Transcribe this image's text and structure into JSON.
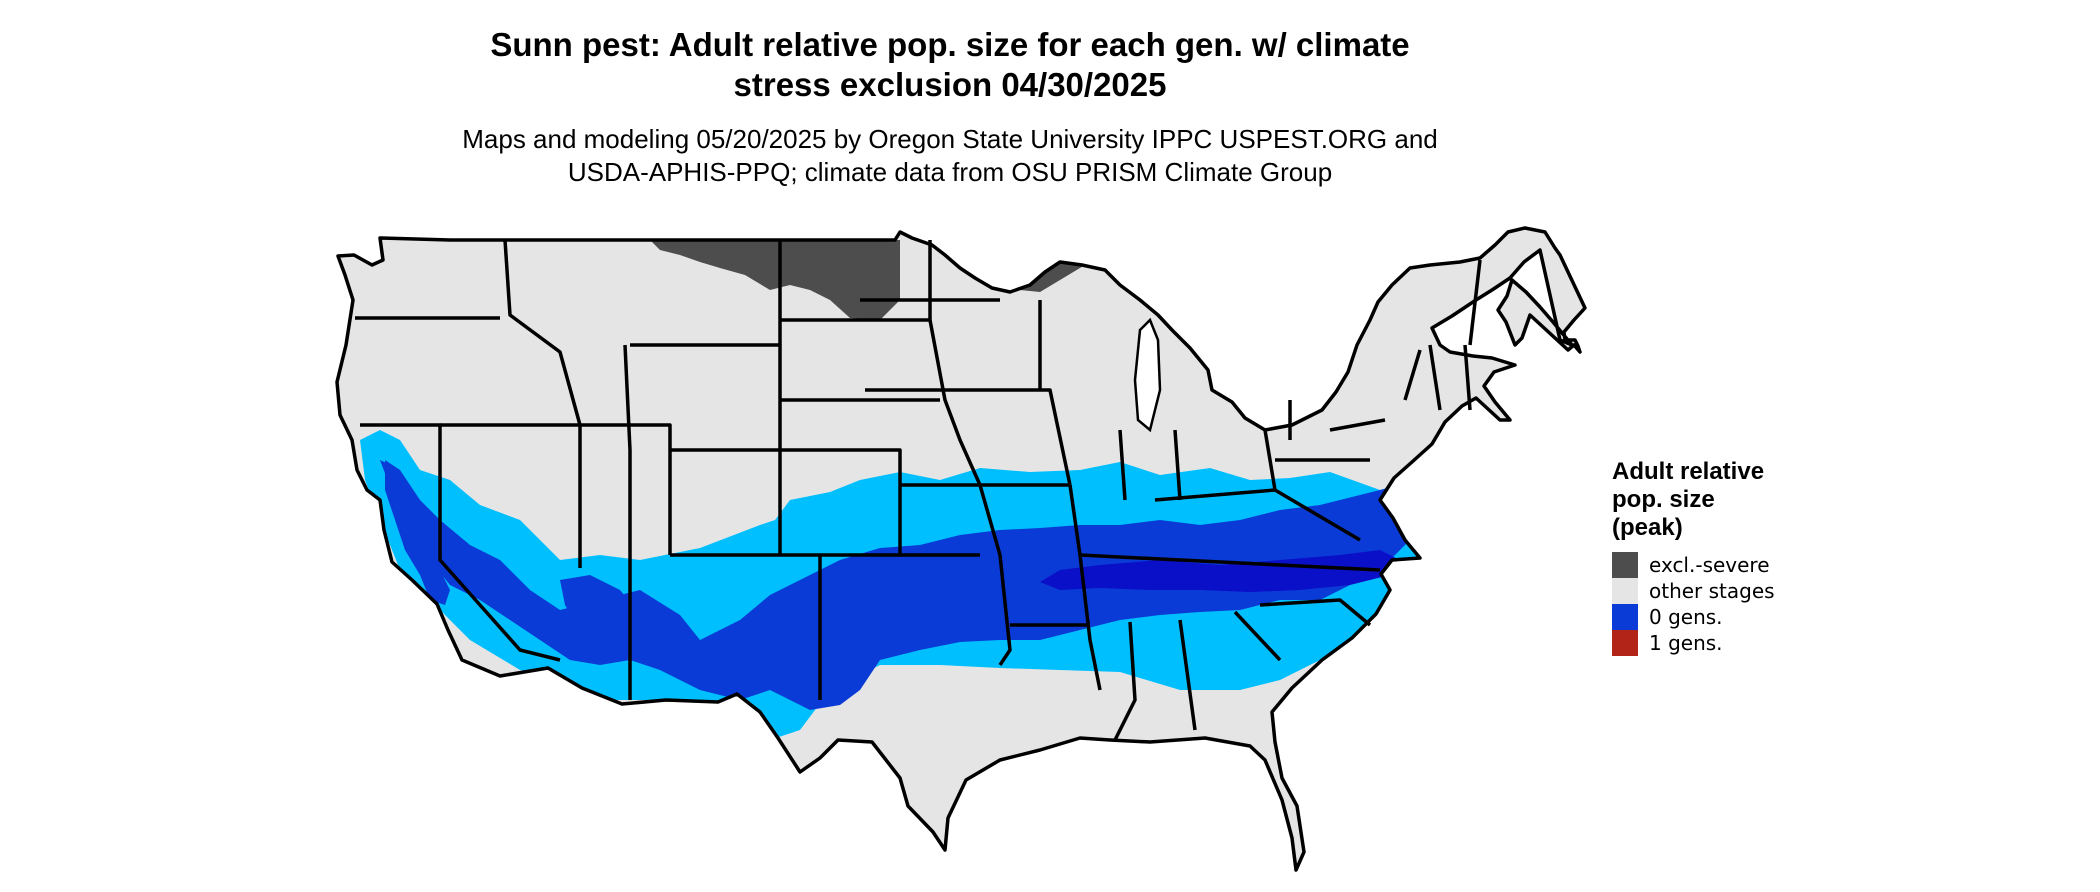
{
  "title": {
    "line1": "Sunn pest: Adult relative pop. size for each gen. w/ climate",
    "line2": "stress exclusion 04/30/2025"
  },
  "subtitle": {
    "line1": "Maps and modeling 05/20/2025 by Oregon State University IPPC USPEST.ORG and",
    "line2": "USDA-APHIS-PPQ; climate data from OSU PRISM Climate Group"
  },
  "legend": {
    "title_line1": "Adult relative",
    "title_line2": "pop. size",
    "title_line3": "(peak)",
    "items": [
      {
        "label": "excl.-severe",
        "color": "#4d4d4d"
      },
      {
        "label": "other stages",
        "color": "#e5e5e5"
      },
      {
        "label": "0 gens.",
        "color": "#0b3bd6"
      },
      {
        "label": "1 gens.",
        "color": "#b22417"
      }
    ]
  },
  "map": {
    "region": "Contiguous United States",
    "colors": {
      "land": "#e5e5e5",
      "excluded": "#4d4d4d",
      "low": "#00bfff",
      "mid": "#0b3bd6",
      "high": "#0a0fc8",
      "border": "#000000"
    }
  }
}
